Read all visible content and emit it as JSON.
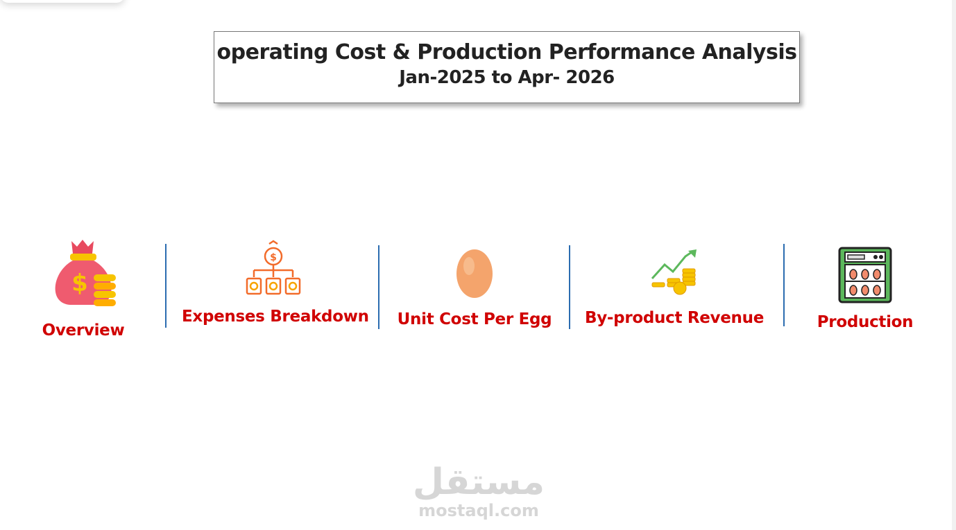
{
  "header": {
    "title": "operating Cost & Production Performance Analysis",
    "subtitle": "Jan-2025 to Apr- 2026"
  },
  "nav": {
    "items": [
      {
        "label": "Overview"
      },
      {
        "label": "Expenses Breakdown"
      },
      {
        "label": "Unit Cost Per Egg"
      },
      {
        "label": "By-product Revenue"
      },
      {
        "label": "Production"
      }
    ]
  },
  "watermark": {
    "arabic": "مستقل",
    "latin": "mostaql.com"
  }
}
